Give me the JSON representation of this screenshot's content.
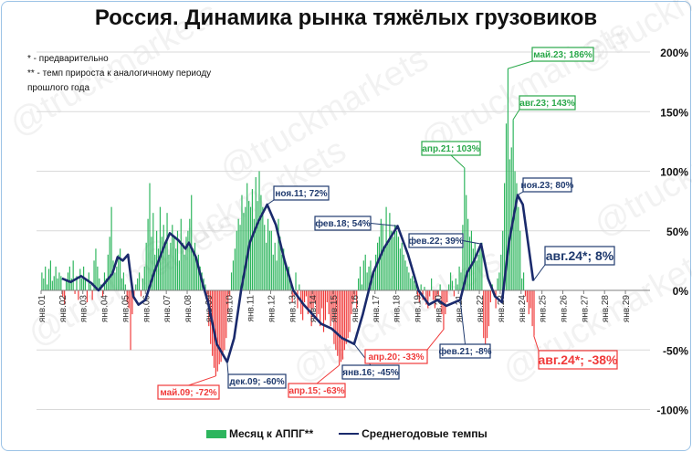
{
  "title": "Россия. Динамика рынка тяжёлых грузовиков",
  "notes": [
    "* - предварительно",
    "** - темп прироста к аналогичному периоду",
    "прошлого года"
  ],
  "watermark": "@truckmarkets",
  "legend": {
    "bars": "Месяц к АППГ**",
    "line": "Среднегодовые темпы"
  },
  "colors": {
    "positive": "#2db55d",
    "negative": "#f03a3a",
    "line": "#1a2a6c",
    "grid": "#d9d9d9",
    "green_label": "#2aa84a",
    "red_label": "#f03a3a",
    "navy_label": "#1f3a6e"
  },
  "chart_data": {
    "type": "bar+line",
    "title": "Россия. Динамика рынка тяжёлых грузовиков",
    "ylim": [
      -100,
      200
    ],
    "yticks": [
      "200%",
      "150%",
      "100%",
      "50%",
      "0%",
      "-50%",
      "-100%"
    ],
    "ytick_values": [
      200,
      150,
      100,
      50,
      0,
      -50,
      -100
    ],
    "xticks": [
      "янв.01",
      "янв.02",
      "янв.03",
      "янв.04",
      "янв.05",
      "янв.06",
      "янв.07",
      "янв.08",
      "янв.09",
      "янв.10",
      "янв.11",
      "янв.12",
      "янв.13",
      "янв.14",
      "янв.15",
      "янв.16",
      "янв.17",
      "янв.18",
      "янв.19",
      "янв.20",
      "янв.21",
      "янв.22",
      "янв.23",
      "янв.24",
      "янв.25",
      "янв.26",
      "янв.27",
      "янв.28",
      "янв.29"
    ],
    "grid": true,
    "legend_position": "bottom",
    "bars_start": "2001-01",
    "bars": {
      "name": "Месяц к АППГ**",
      "values": [
        15,
        10,
        20,
        5,
        18,
        25,
        8,
        12,
        20,
        10,
        15,
        12,
        -5,
        -12,
        8,
        15,
        20,
        10,
        25,
        -3,
        12,
        -8,
        18,
        10,
        20,
        10,
        -10,
        15,
        5,
        -8,
        25,
        35,
        20,
        10,
        5,
        -5,
        15,
        10,
        30,
        45,
        70,
        25,
        15,
        20,
        30,
        35,
        10,
        15,
        5,
        -10,
        -15,
        -50,
        -20,
        -5,
        5,
        10,
        15,
        -5,
        10,
        20,
        40,
        60,
        90,
        45,
        65,
        30,
        50,
        35,
        70,
        45,
        55,
        40,
        65,
        30,
        40,
        55,
        45,
        35,
        50,
        25,
        60,
        40,
        30,
        45,
        50,
        60,
        80,
        35,
        40,
        25,
        30,
        20,
        15,
        10,
        5,
        -10,
        -30,
        -45,
        -55,
        -65,
        -72,
        -68,
        -62,
        -60,
        -55,
        -50,
        -40,
        -20,
        -5,
        15,
        25,
        35,
        50,
        60,
        55,
        80,
        65,
        70,
        90,
        75,
        70,
        85,
        60,
        95,
        75,
        100,
        80,
        70,
        55,
        40,
        60,
        50,
        50,
        30,
        40,
        25,
        60,
        45,
        30,
        35,
        25,
        15,
        20,
        10,
        -10,
        -5,
        15,
        -15,
        5,
        -20,
        -25,
        -10,
        -5,
        -20,
        -15,
        -30,
        -15,
        -10,
        -25,
        -20,
        -30,
        -15,
        -35,
        -25,
        -10,
        -20,
        -30,
        -25,
        -45,
        -50,
        -55,
        -63,
        -60,
        -58,
        -50,
        -45,
        -40,
        -35,
        -20,
        -10,
        -5,
        -15,
        10,
        20,
        5,
        25,
        30,
        15,
        20,
        25,
        10,
        15,
        30,
        40,
        45,
        60,
        55,
        35,
        70,
        40,
        65,
        50,
        45,
        55,
        50,
        45,
        35,
        40,
        30,
        25,
        20,
        15,
        10,
        12,
        8,
        5,
        -5,
        -10,
        5,
        -8,
        3,
        -12,
        -15,
        -5,
        10,
        -8,
        -15,
        -5,
        -5,
        5,
        -20,
        -33,
        -20,
        -10,
        5,
        15,
        8,
        -5,
        10,
        5,
        20,
        15,
        55,
        103,
        80,
        60,
        45,
        50,
        35,
        40,
        25,
        30,
        35,
        40,
        -40,
        -45,
        -40,
        -30,
        -10,
        5,
        -5,
        -15,
        10,
        15,
        30,
        50,
        90,
        140,
        186,
        110,
        120,
        143,
        100,
        90,
        70,
        50,
        10,
        15,
        -5,
        -10,
        -20,
        -15,
        -30,
        -38
      ]
    },
    "line": {
      "name": "Среднегодовые темпы",
      "points": [
        [
          "2002-01",
          10
        ],
        [
          "2002-06",
          7
        ],
        [
          "2002-12",
          12
        ],
        [
          "2003-06",
          6
        ],
        [
          "2003-10",
          0
        ],
        [
          "2004-01",
          5
        ],
        [
          "2004-06",
          14
        ],
        [
          "2004-09",
          28
        ],
        [
          "2004-12",
          25
        ],
        [
          "2005-03",
          30
        ],
        [
          "2005-06",
          -5
        ],
        [
          "2005-09",
          -12
        ],
        [
          "2006-01",
          -8
        ],
        [
          "2006-06",
          15
        ],
        [
          "2006-12",
          38
        ],
        [
          "2007-03",
          48
        ],
        [
          "2007-08",
          42
        ],
        [
          "2007-12",
          35
        ],
        [
          "2008-02",
          40
        ],
        [
          "2008-06",
          28
        ],
        [
          "2008-10",
          5
        ],
        [
          "2009-01",
          -10
        ],
        [
          "2009-06",
          -45
        ],
        [
          "2009-12",
          -60
        ],
        [
          "2010-04",
          -40
        ],
        [
          "2010-08",
          0
        ],
        [
          "2011-01",
          40
        ],
        [
          "2011-06",
          58
        ],
        [
          "2011-11",
          72
        ],
        [
          "2012-04",
          55
        ],
        [
          "2012-09",
          25
        ],
        [
          "2013-02",
          0
        ],
        [
          "2013-08",
          -12
        ],
        [
          "2014-01",
          -20
        ],
        [
          "2014-06",
          -28
        ],
        [
          "2014-12",
          -32
        ],
        [
          "2015-06",
          -40
        ],
        [
          "2016-01",
          -45
        ],
        [
          "2016-06",
          -20
        ],
        [
          "2016-12",
          15
        ],
        [
          "2017-06",
          35
        ],
        [
          "2018-02",
          54
        ],
        [
          "2018-08",
          30
        ],
        [
          "2019-02",
          0
        ],
        [
          "2019-08",
          -12
        ],
        [
          "2020-01",
          -8
        ],
        [
          "2020-06",
          -13
        ],
        [
          "2021-02",
          -8
        ],
        [
          "2021-06",
          15
        ],
        [
          "2021-10",
          25
        ],
        [
          "2022-02",
          39
        ],
        [
          "2022-06",
          10
        ],
        [
          "2022-10",
          -5
        ],
        [
          "2023-02",
          -10
        ],
        [
          "2023-06",
          40
        ],
        [
          "2023-11",
          80
        ],
        [
          "2024-02",
          72
        ],
        [
          "2024-08",
          8
        ]
      ]
    },
    "annotations": [
      {
        "text": "май.09; -72%",
        "date": "2009-05",
        "value": -72,
        "series": "bars"
      },
      {
        "text": "дек.09; -60%",
        "date": "2009-12",
        "value": -60,
        "series": "line"
      },
      {
        "text": "апр.15; -63%",
        "date": "2015-04",
        "value": -63,
        "series": "bars"
      },
      {
        "text": "янв.16; -45%",
        "date": "2016-01",
        "value": -45,
        "series": "line"
      },
      {
        "text": "апр.20; -33%",
        "date": "2020-04",
        "value": -33,
        "series": "bars"
      },
      {
        "text": "фев.21; -8%",
        "date": "2021-02",
        "value": -8,
        "series": "line"
      },
      {
        "text": "авг.24*; -38%",
        "date": "2024-08",
        "value": -38,
        "series": "bars"
      },
      {
        "text": "ноя.11; 72%",
        "date": "2011-11",
        "value": 72,
        "series": "line"
      },
      {
        "text": "фев.18; 54%",
        "date": "2018-02",
        "value": 54,
        "series": "line"
      },
      {
        "text": "фев.22; 39%",
        "date": "2022-02",
        "value": 39,
        "series": "line"
      },
      {
        "text": "апр.21; 103%",
        "date": "2021-04",
        "value": 103,
        "series": "bars"
      },
      {
        "text": "май.23; 186%",
        "date": "2023-05",
        "value": 186,
        "series": "bars"
      },
      {
        "text": "авг.23; 143%",
        "date": "2023-08",
        "value": 143,
        "series": "bars"
      },
      {
        "text": "ноя.23; 80%",
        "date": "2023-11",
        "value": 80,
        "series": "line"
      },
      {
        "text": "авг.24*; 8%",
        "date": "2024-08",
        "value": 8,
        "series": "line"
      }
    ]
  }
}
